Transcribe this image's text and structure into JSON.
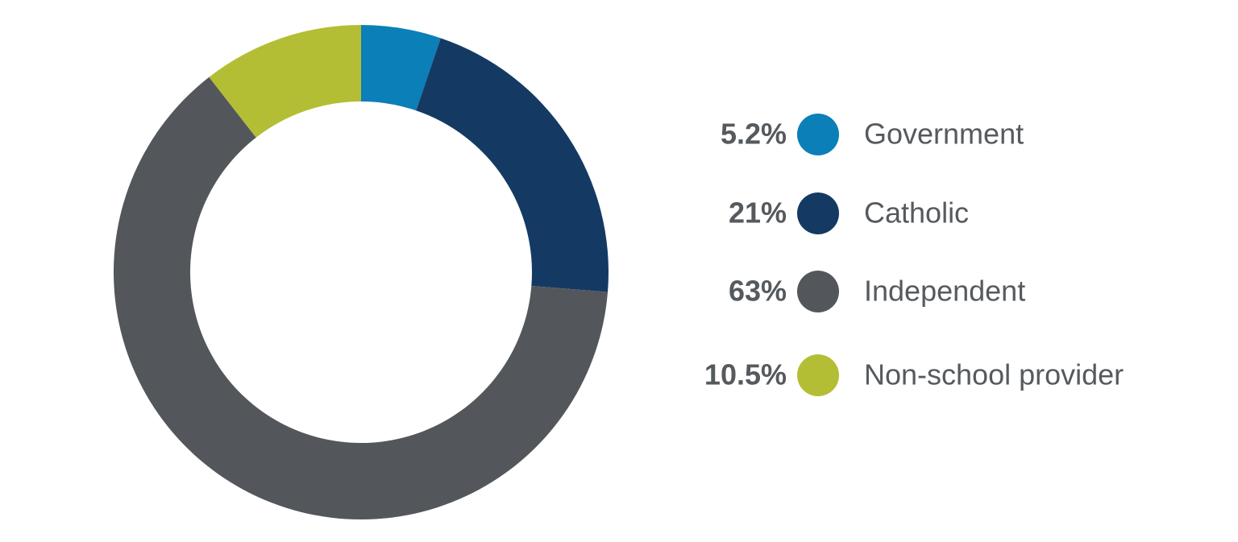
{
  "chart_data": {
    "type": "donut",
    "categories": [
      "Government",
      "Catholic",
      "Independent",
      "Non-school provider"
    ],
    "values": [
      5.2,
      21,
      63,
      10.5
    ],
    "value_labels": [
      "5.2%",
      "21%",
      "63%",
      "10.5%"
    ],
    "colors": [
      "#0b7fb8",
      "#143a63",
      "#53575b",
      "#b3be34"
    ]
  }
}
